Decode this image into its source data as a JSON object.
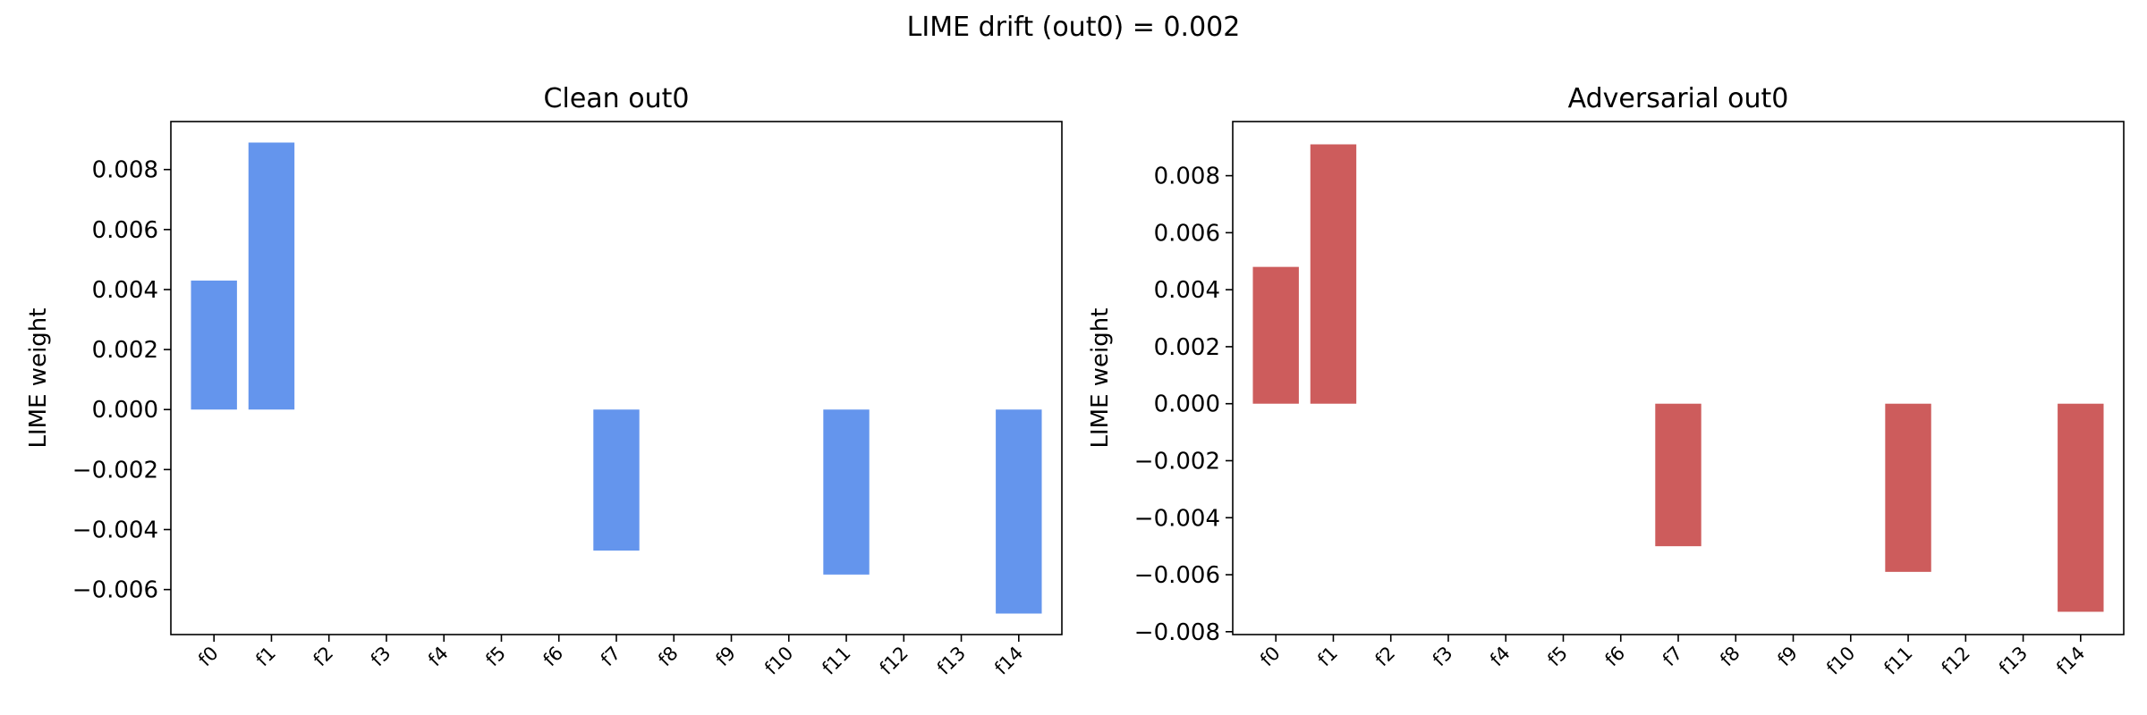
{
  "figure": {
    "suptitle": "LIME drift (out0) = 0.002"
  },
  "chart_data": [
    {
      "type": "bar",
      "title": "Clean out0",
      "xlabel": "",
      "ylabel": "LIME weight",
      "categories": [
        "f0",
        "f1",
        "f2",
        "f3",
        "f4",
        "f5",
        "f6",
        "f7",
        "f8",
        "f9",
        "f10",
        "f11",
        "f12",
        "f13",
        "f14"
      ],
      "values": [
        0.0043,
        0.0089,
        0,
        0,
        0,
        0,
        0,
        -0.0047,
        0,
        0,
        0,
        -0.0055,
        0,
        0,
        -0.0068
      ],
      "ylim": [
        -0.0075,
        0.0096
      ],
      "yticks": [
        0.008,
        0.006,
        0.004,
        0.002,
        0.0,
        -0.002,
        -0.004,
        -0.006
      ],
      "ytick_labels": [
        "0.008",
        "0.006",
        "0.004",
        "0.002",
        "0.000",
        "−0.002",
        "−0.004",
        "−0.006"
      ],
      "color": "#6495ed",
      "grid": false
    },
    {
      "type": "bar",
      "title": "Adversarial out0",
      "xlabel": "",
      "ylabel": "LIME weight",
      "categories": [
        "f0",
        "f1",
        "f2",
        "f3",
        "f4",
        "f5",
        "f6",
        "f7",
        "f8",
        "f9",
        "f10",
        "f11",
        "f12",
        "f13",
        "f14"
      ],
      "values": [
        0.0048,
        0.0091,
        0,
        0,
        0,
        0,
        0,
        -0.005,
        0,
        0,
        0,
        -0.0059,
        0,
        0,
        -0.0073
      ],
      "ylim": [
        -0.0081,
        0.0099
      ],
      "yticks": [
        0.008,
        0.006,
        0.004,
        0.002,
        0.0,
        -0.002,
        -0.004,
        -0.006,
        -0.008
      ],
      "ytick_labels": [
        "0.008",
        "0.006",
        "0.004",
        "0.002",
        "0.000",
        "−0.002",
        "−0.004",
        "−0.006",
        "−0.008"
      ],
      "color": "#cd5c5c",
      "grid": false
    }
  ]
}
